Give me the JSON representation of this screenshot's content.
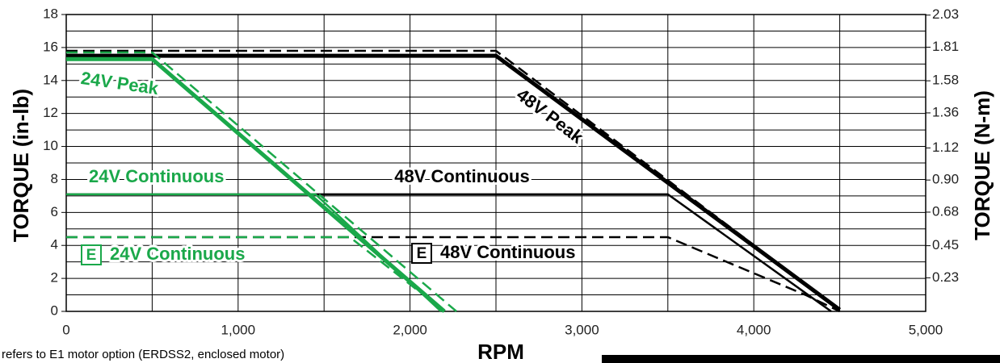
{
  "chart_data": {
    "type": "line",
    "xlabel": "RPM",
    "ylabel": "TORQUE (in-lb)",
    "y2label": "TORQUE (N-m)",
    "footnote": "refers to E1 motor option (ERDSS2, enclosed motor)",
    "xlim": [
      0,
      5000
    ],
    "xticks": [
      0,
      {
        "value": 1000,
        "label": "1,000"
      },
      {
        "value": 2000,
        "label": "2,000"
      },
      {
        "value": 3000,
        "label": "3,000"
      },
      {
        "value": 4000,
        "label": "4,000"
      },
      {
        "value": 5000,
        "label": "5,000"
      }
    ],
    "minor_xticks": [
      500,
      1500,
      2500,
      3500,
      4500
    ],
    "ylim": [
      0,
      18
    ],
    "yticks": [
      0,
      2,
      4,
      6,
      8,
      10,
      12,
      14,
      16,
      18
    ],
    "minor_yticks": [
      1,
      3,
      5,
      7,
      9,
      11,
      13,
      15,
      17
    ],
    "y2lim": [
      0,
      2.034
    ],
    "y2ticks": [
      0.23,
      0.45,
      0.68,
      {
        "value": 0.9,
        "label": "0.90"
      },
      1.12,
      1.36,
      1.58,
      1.81,
      2.03
    ],
    "grid": true,
    "series": [
      {
        "name": "48V Peak",
        "color": "#000000",
        "style": "solid",
        "x": [
          0,
          2500,
          4500
        ],
        "values": [
          15.5,
          15.5,
          0.1
        ]
      },
      {
        "color": "#000000",
        "style": "dashed",
        "x": [
          0,
          2500,
          4500
        ],
        "values": [
          15.8,
          15.8,
          0.1
        ]
      },
      {
        "name": "48V Continuous",
        "color": "#000000",
        "style": "solid",
        "x": [
          0,
          3500,
          4450
        ],
        "values": [
          7.1,
          7.1,
          0
        ]
      },
      {
        "name": "48V Continuous",
        "marker": "E",
        "color": "#000000",
        "style": "dashed",
        "x": [
          0,
          3500,
          4300,
          4500
        ],
        "values": [
          4.5,
          4.5,
          1.0,
          0
        ]
      },
      {
        "name": "24V Peak",
        "color": "#1aa84a",
        "style": "solid",
        "x": [
          0,
          500,
          2200
        ],
        "values": [
          15.3,
          15.3,
          0
        ]
      },
      {
        "color": "#1aa84a",
        "style": "dashed",
        "x": [
          0,
          500,
          2270
        ],
        "values": [
          15.7,
          15.7,
          0
        ]
      },
      {
        "name": "24V Continuous",
        "color": "#1aa84a",
        "style": "solid",
        "x": [
          0,
          1450,
          2180
        ],
        "values": [
          7.1,
          7.1,
          0
        ]
      },
      {
        "name": "24V Continuous",
        "marker": "E",
        "color": "#1aa84a",
        "style": "dashed",
        "x": [
          0,
          1650,
          2200
        ],
        "values": [
          4.5,
          4.5,
          0
        ]
      }
    ]
  }
}
